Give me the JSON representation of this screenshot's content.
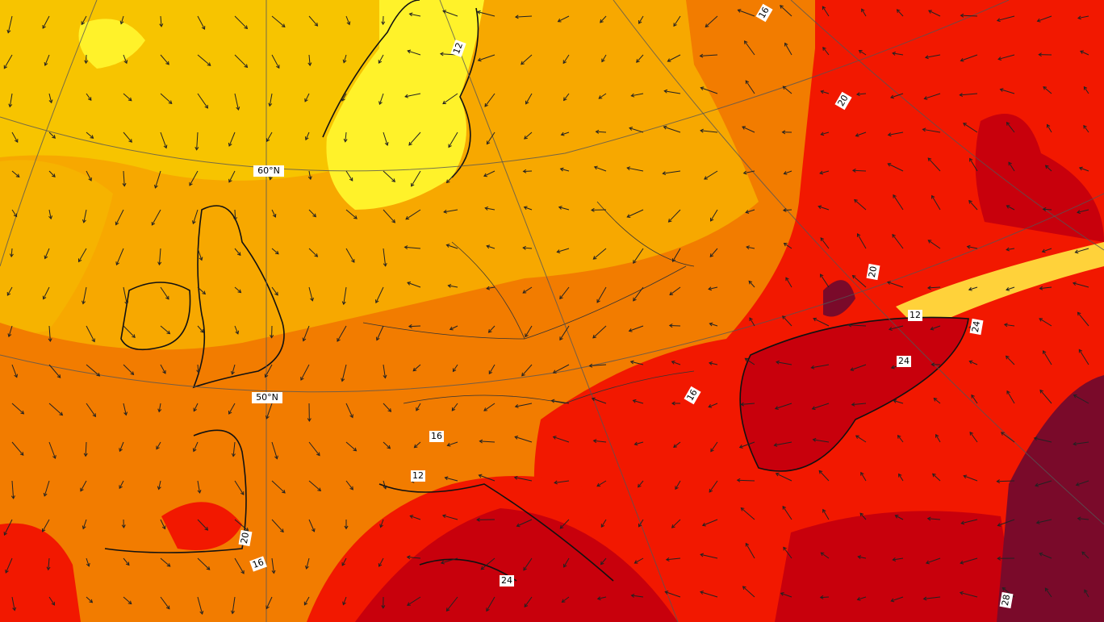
{
  "map": {
    "graticule_labels": [
      "60°N",
      "50°N"
    ],
    "contour_labels": [
      "16",
      "12",
      "20",
      "20",
      "12",
      "24",
      "24",
      "16",
      "16",
      "12",
      "20",
      "16",
      "24",
      "28"
    ]
  }
}
